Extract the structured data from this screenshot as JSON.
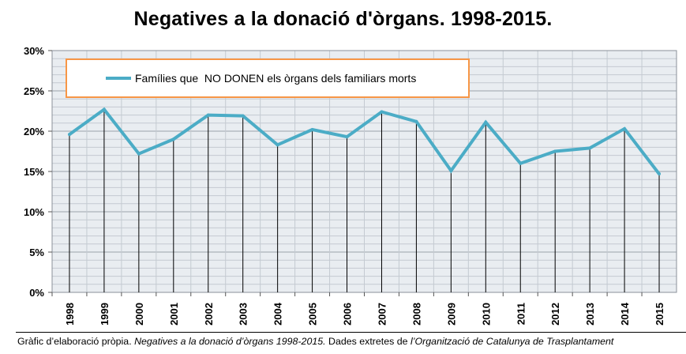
{
  "title": "Negatives a la donació d'òrgans. 1998-2015.",
  "caption": {
    "part1": "Gràfic d’elaboració pròpia. ",
    "part2": "Negatives a la donació d’òrgans 1998-2015.",
    "part3": "  Dades extretes de ",
    "part4": "l’Organització de Catalunya de Trasplantament"
  },
  "colors": {
    "line": "#4BACC6",
    "legend_border": "#F79646",
    "grid": "#B0B0B0",
    "plot_bg": "#E9EDF1"
  },
  "chart_data": {
    "type": "line",
    "title": "Negatives a la donació d'òrgans. 1998-2015.",
    "xlabel": "",
    "ylabel": "",
    "categories": [
      "1998",
      "1999",
      "2000",
      "2001",
      "2002",
      "2003",
      "2004",
      "2005",
      "2006",
      "2007",
      "2008",
      "2009",
      "2010",
      "2011",
      "2012",
      "2013",
      "2014",
      "2015"
    ],
    "series": [
      {
        "name": "Famílies que  NO DONEN els òrgans dels familiars morts",
        "values": [
          19.6,
          22.7,
          17.2,
          19.0,
          22.0,
          21.9,
          18.3,
          20.2,
          19.3,
          22.4,
          21.2,
          15.1,
          21.1,
          16.0,
          17.5,
          17.9,
          20.3,
          14.7
        ]
      }
    ],
    "ylim": [
      0,
      30
    ],
    "yticks": [
      0,
      5,
      10,
      15,
      20,
      25,
      30
    ],
    "ytick_labels": [
      "0%",
      "5%",
      "10%",
      "15%",
      "20%",
      "25%",
      "30%"
    ],
    "grid": true,
    "drop_lines": true,
    "legend": "top-left, inside plot"
  }
}
